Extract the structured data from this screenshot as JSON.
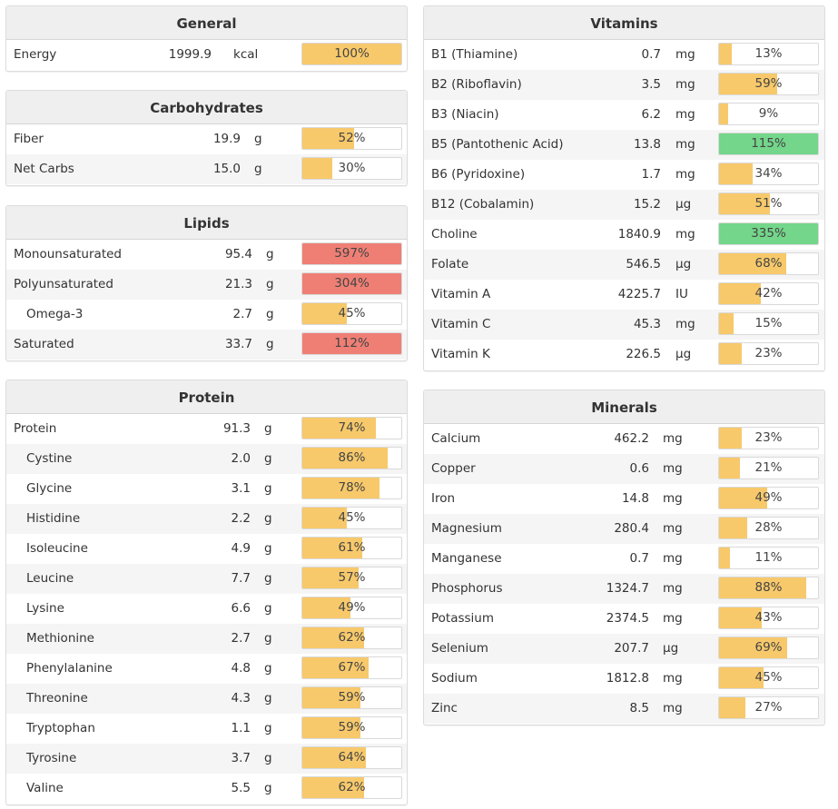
{
  "colors": {
    "normal": "#f7c96b",
    "high": "#73d68a",
    "over": "#ef7f75"
  },
  "general": {
    "title": "General",
    "rows": [
      {
        "name": "Energy",
        "value": "1999.9",
        "unit": "kcal",
        "pct_label": "100%",
        "pct": 100,
        "level": "normal"
      }
    ]
  },
  "carbohydrates": {
    "title": "Carbohydrates",
    "rows": [
      {
        "name": "Fiber",
        "value": "19.9",
        "unit": "g",
        "pct_label": "52%",
        "pct": 52,
        "level": "normal"
      },
      {
        "name": "Net Carbs",
        "value": "15.0",
        "unit": "g",
        "pct_label": "30%",
        "pct": 30,
        "level": "normal"
      }
    ]
  },
  "lipids": {
    "title": "Lipids",
    "rows": [
      {
        "name": "Monounsaturated",
        "value": "95.4",
        "unit": "g",
        "pct_label": "597%",
        "pct": 100,
        "level": "over"
      },
      {
        "name": "Polyunsaturated",
        "value": "21.3",
        "unit": "g",
        "pct_label": "304%",
        "pct": 100,
        "level": "over"
      },
      {
        "name": "Omega-3",
        "value": "2.7",
        "unit": "g",
        "pct_label": "45%",
        "pct": 45,
        "level": "normal",
        "indent": true
      },
      {
        "name": "Saturated",
        "value": "33.7",
        "unit": "g",
        "pct_label": "112%",
        "pct": 100,
        "level": "over"
      }
    ]
  },
  "protein": {
    "title": "Protein",
    "rows": [
      {
        "name": "Protein",
        "value": "91.3",
        "unit": "g",
        "pct_label": "74%",
        "pct": 74,
        "level": "normal"
      },
      {
        "name": "Cystine",
        "value": "2.0",
        "unit": "g",
        "pct_label": "86%",
        "pct": 86,
        "level": "normal",
        "indent": true
      },
      {
        "name": "Glycine",
        "value": "3.1",
        "unit": "g",
        "pct_label": "78%",
        "pct": 78,
        "level": "normal",
        "indent": true
      },
      {
        "name": "Histidine",
        "value": "2.2",
        "unit": "g",
        "pct_label": "45%",
        "pct": 45,
        "level": "normal",
        "indent": true
      },
      {
        "name": "Isoleucine",
        "value": "4.9",
        "unit": "g",
        "pct_label": "61%",
        "pct": 61,
        "level": "normal",
        "indent": true
      },
      {
        "name": "Leucine",
        "value": "7.7",
        "unit": "g",
        "pct_label": "57%",
        "pct": 57,
        "level": "normal",
        "indent": true
      },
      {
        "name": "Lysine",
        "value": "6.6",
        "unit": "g",
        "pct_label": "49%",
        "pct": 49,
        "level": "normal",
        "indent": true
      },
      {
        "name": "Methionine",
        "value": "2.7",
        "unit": "g",
        "pct_label": "62%",
        "pct": 62,
        "level": "normal",
        "indent": true
      },
      {
        "name": "Phenylalanine",
        "value": "4.8",
        "unit": "g",
        "pct_label": "67%",
        "pct": 67,
        "level": "normal",
        "indent": true
      },
      {
        "name": "Threonine",
        "value": "4.3",
        "unit": "g",
        "pct_label": "59%",
        "pct": 59,
        "level": "normal",
        "indent": true
      },
      {
        "name": "Tryptophan",
        "value": "1.1",
        "unit": "g",
        "pct_label": "59%",
        "pct": 59,
        "level": "normal",
        "indent": true
      },
      {
        "name": "Tyrosine",
        "value": "3.7",
        "unit": "g",
        "pct_label": "64%",
        "pct": 64,
        "level": "normal",
        "indent": true
      },
      {
        "name": "Valine",
        "value": "5.5",
        "unit": "g",
        "pct_label": "62%",
        "pct": 62,
        "level": "normal",
        "indent": true
      }
    ]
  },
  "vitamins": {
    "title": "Vitamins",
    "rows": [
      {
        "name": "B1 (Thiamine)",
        "value": "0.7",
        "unit": "mg",
        "pct_label": "13%",
        "pct": 13,
        "level": "normal"
      },
      {
        "name": "B2 (Riboflavin)",
        "value": "3.5",
        "unit": "mg",
        "pct_label": "59%",
        "pct": 59,
        "level": "normal"
      },
      {
        "name": "B3 (Niacin)",
        "value": "6.2",
        "unit": "mg",
        "pct_label": "9%",
        "pct": 9,
        "level": "normal"
      },
      {
        "name": "B5 (Pantothenic Acid)",
        "value": "13.8",
        "unit": "mg",
        "pct_label": "115%",
        "pct": 100,
        "level": "high"
      },
      {
        "name": "B6 (Pyridoxine)",
        "value": "1.7",
        "unit": "mg",
        "pct_label": "34%",
        "pct": 34,
        "level": "normal"
      },
      {
        "name": "B12 (Cobalamin)",
        "value": "15.2",
        "unit": "µg",
        "pct_label": "51%",
        "pct": 51,
        "level": "normal"
      },
      {
        "name": "Choline",
        "value": "1840.9",
        "unit": "mg",
        "pct_label": "335%",
        "pct": 100,
        "level": "high"
      },
      {
        "name": "Folate",
        "value": "546.5",
        "unit": "µg",
        "pct_label": "68%",
        "pct": 68,
        "level": "normal"
      },
      {
        "name": "Vitamin A",
        "value": "4225.7",
        "unit": "IU",
        "pct_label": "42%",
        "pct": 42,
        "level": "normal"
      },
      {
        "name": "Vitamin C",
        "value": "45.3",
        "unit": "mg",
        "pct_label": "15%",
        "pct": 15,
        "level": "normal"
      },
      {
        "name": "Vitamin K",
        "value": "226.5",
        "unit": "µg",
        "pct_label": "23%",
        "pct": 23,
        "level": "normal"
      }
    ]
  },
  "minerals": {
    "title": "Minerals",
    "rows": [
      {
        "name": "Calcium",
        "value": "462.2",
        "unit": "mg",
        "pct_label": "23%",
        "pct": 23,
        "level": "normal"
      },
      {
        "name": "Copper",
        "value": "0.6",
        "unit": "mg",
        "pct_label": "21%",
        "pct": 21,
        "level": "normal"
      },
      {
        "name": "Iron",
        "value": "14.8",
        "unit": "mg",
        "pct_label": "49%",
        "pct": 49,
        "level": "normal"
      },
      {
        "name": "Magnesium",
        "value": "280.4",
        "unit": "mg",
        "pct_label": "28%",
        "pct": 28,
        "level": "normal"
      },
      {
        "name": "Manganese",
        "value": "0.7",
        "unit": "mg",
        "pct_label": "11%",
        "pct": 11,
        "level": "normal"
      },
      {
        "name": "Phosphorus",
        "value": "1324.7",
        "unit": "mg",
        "pct_label": "88%",
        "pct": 88,
        "level": "normal"
      },
      {
        "name": "Potassium",
        "value": "2374.5",
        "unit": "mg",
        "pct_label": "43%",
        "pct": 43,
        "level": "normal"
      },
      {
        "name": "Selenium",
        "value": "207.7",
        "unit": "µg",
        "pct_label": "69%",
        "pct": 69,
        "level": "normal"
      },
      {
        "name": "Sodium",
        "value": "1812.8",
        "unit": "mg",
        "pct_label": "45%",
        "pct": 45,
        "level": "normal"
      },
      {
        "name": "Zinc",
        "value": "8.5",
        "unit": "mg",
        "pct_label": "27%",
        "pct": 27,
        "level": "normal"
      }
    ]
  }
}
